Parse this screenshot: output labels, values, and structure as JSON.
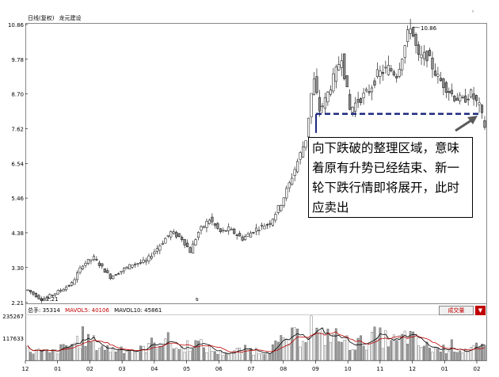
{
  "window": {
    "title": "日线(复权)",
    "stock_name": "龙元建设"
  },
  "chart_data": [
    {
      "type": "candlestick",
      "title": "日线(复权)  龙元建设",
      "y_ticks": [
        "10.86",
        "9.78",
        "8.70",
        "7.62",
        "6.54",
        "5.46",
        "4.38",
        "3.30",
        "2.21"
      ],
      "ylim": [
        2.21,
        10.86
      ],
      "x_ticks": [
        "12",
        "01",
        "02",
        "03",
        "04",
        "05",
        "06",
        "07",
        "08",
        "09",
        "10",
        "11",
        "12",
        "01",
        "02"
      ],
      "annotations": {
        "high_label": "10.86",
        "low_label": "2.21",
        "note": "向下跌破的整理区域，意味着原有升势已经结束、新一轮下跌行情即将展开，此时应卖出"
      },
      "support_line_price": 8.08,
      "price_path": [
        [
          0,
          2.6
        ],
        [
          5,
          2.3
        ],
        [
          10,
          2.5
        ],
        [
          16,
          2.8
        ],
        [
          20,
          3.4
        ],
        [
          24,
          3.6
        ],
        [
          27,
          3.3
        ],
        [
          30,
          3.0
        ],
        [
          34,
          3.2
        ],
        [
          38,
          3.4
        ],
        [
          43,
          3.5
        ],
        [
          48,
          4.0
        ],
        [
          52,
          4.4
        ],
        [
          56,
          4.2
        ],
        [
          59,
          3.8
        ],
        [
          62,
          4.4
        ],
        [
          66,
          4.8
        ],
        [
          70,
          4.4
        ],
        [
          73,
          4.5
        ],
        [
          78,
          4.2
        ],
        [
          83,
          4.5
        ],
        [
          88,
          4.7
        ],
        [
          92,
          5.3
        ],
        [
          95,
          5.9
        ],
        [
          98,
          6.6
        ],
        [
          101,
          7.3
        ],
        [
          103,
          8.7
        ],
        [
          104,
          9.1
        ],
        [
          106,
          8.2
        ],
        [
          108,
          8.5
        ],
        [
          112,
          9.4
        ],
        [
          114,
          9.9
        ],
        [
          117,
          8.2
        ],
        [
          120,
          8.5
        ],
        [
          124,
          8.8
        ],
        [
          127,
          9.3
        ],
        [
          131,
          9.5
        ],
        [
          134,
          9.3
        ],
        [
          137,
          10.2
        ],
        [
          139,
          10.86
        ],
        [
          142,
          9.8
        ],
        [
          145,
          9.9
        ],
        [
          149,
          9.2
        ],
        [
          152,
          8.9
        ],
        [
          155,
          8.6
        ],
        [
          158,
          8.5
        ],
        [
          161,
          8.7
        ],
        [
          164,
          8.3
        ],
        [
          166,
          7.7
        ]
      ]
    },
    {
      "type": "bar",
      "title": "总手",
      "series": [
        {
          "name": "总手",
          "value": "35314"
        },
        {
          "name": "MAVOL5",
          "value": "40106"
        },
        {
          "name": "MAVOL10",
          "value": "45861"
        }
      ],
      "y_ticks": [
        "235267",
        "117633"
      ],
      "ylim": [
        0,
        235267
      ],
      "volume_path": [
        [
          0,
          60
        ],
        [
          8,
          40
        ],
        [
          15,
          80
        ],
        [
          20,
          130
        ],
        [
          25,
          90
        ],
        [
          30,
          60
        ],
        [
          35,
          70
        ],
        [
          40,
          50
        ],
        [
          45,
          90
        ],
        [
          50,
          120
        ],
        [
          55,
          60
        ],
        [
          60,
          100
        ],
        [
          65,
          70
        ],
        [
          70,
          40
        ],
        [
          75,
          50
        ],
        [
          80,
          60
        ],
        [
          85,
          50
        ],
        [
          90,
          80
        ],
        [
          95,
          120
        ],
        [
          100,
          140
        ],
        [
          103,
          200
        ],
        [
          106,
          120
        ],
        [
          110,
          150
        ],
        [
          114,
          110
        ],
        [
          118,
          90
        ],
        [
          122,
          100
        ],
        [
          126,
          130
        ],
        [
          130,
          120
        ],
        [
          134,
          100
        ],
        [
          138,
          140
        ],
        [
          142,
          90
        ],
        [
          146,
          70
        ],
        [
          150,
          60
        ],
        [
          154,
          80
        ],
        [
          158,
          60
        ],
        [
          162,
          70
        ],
        [
          166,
          60
        ]
      ],
      "button_label": "成交量"
    }
  ],
  "colors": {
    "candle_fill": "#8f8f8f",
    "candle_stroke": "#000000",
    "support_line": "#1f2a80",
    "ma5": "#000000",
    "ma10": "#c00000",
    "arrow": "#5a5a5a"
  }
}
